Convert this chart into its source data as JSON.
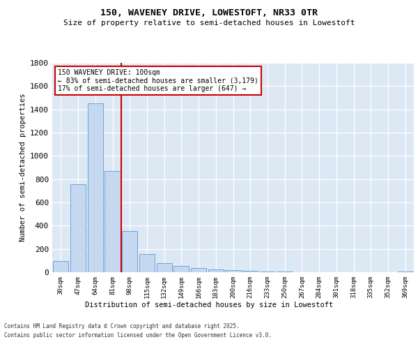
{
  "title_line1": "150, WAVENEY DRIVE, LOWESTOFT, NR33 0TR",
  "title_line2": "Size of property relative to semi-detached houses in Lowestoft",
  "xlabel": "Distribution of semi-detached houses by size in Lowestoft",
  "ylabel": "Number of semi-detached properties",
  "categories": [
    "30sqm",
    "47sqm",
    "64sqm",
    "81sqm",
    "98sqm",
    "115sqm",
    "132sqm",
    "149sqm",
    "166sqm",
    "183sqm",
    "200sqm",
    "216sqm",
    "233sqm",
    "250sqm",
    "267sqm",
    "284sqm",
    "301sqm",
    "318sqm",
    "335sqm",
    "352sqm",
    "369sqm"
  ],
  "values": [
    95,
    755,
    1450,
    868,
    355,
    155,
    80,
    52,
    38,
    22,
    18,
    12,
    8,
    5,
    3,
    2,
    1,
    1,
    0,
    0,
    5
  ],
  "bar_color": "#c5d8f0",
  "bar_edge_color": "#5b9bd5",
  "vline_color": "#cc0000",
  "annotation_title": "150 WAVENEY DRIVE: 100sqm",
  "annotation_line2": "← 83% of semi-detached houses are smaller (3,179)",
  "annotation_line3": "17% of semi-detached houses are larger (647) →",
  "annotation_box_color": "#ffffff",
  "annotation_box_edge": "#cc0000",
  "ylim": [
    0,
    1800
  ],
  "yticks": [
    0,
    200,
    400,
    600,
    800,
    1000,
    1200,
    1400,
    1600,
    1800
  ],
  "background_color": "#dde8f5",
  "grid_color": "#ffffff",
  "fig_background": "#ffffff",
  "footer_line1": "Contains HM Land Registry data © Crown copyright and database right 2025.",
  "footer_line2": "Contains public sector information licensed under the Open Government Licence v3.0."
}
